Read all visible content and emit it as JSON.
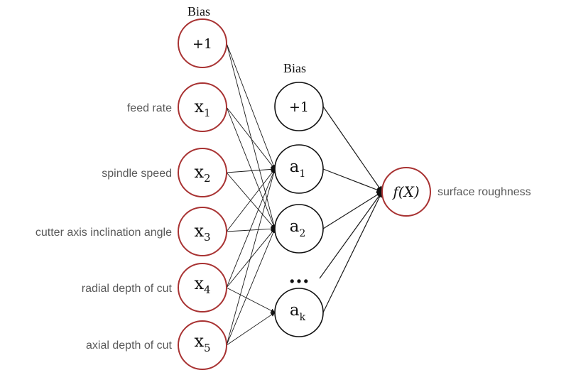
{
  "input_layer": {
    "bias_label": "Bias",
    "bias_node": "+1",
    "nodes": [
      {
        "main": "x",
        "sub": "1",
        "label": "feed rate"
      },
      {
        "main": "x",
        "sub": "2",
        "label": "spindle speed"
      },
      {
        "main": "x",
        "sub": "3",
        "label": "cutter axis inclination angle"
      },
      {
        "main": "x",
        "sub": "4",
        "label": "radial depth of cut"
      },
      {
        "main": "x",
        "sub": "5",
        "label": "axial depth of cut"
      }
    ]
  },
  "hidden_layer": {
    "bias_label": "Bias",
    "bias_node": "+1",
    "nodes": [
      {
        "main": "a",
        "sub": "1"
      },
      {
        "main": "a",
        "sub": "2"
      },
      {
        "main": "a",
        "sub": "k"
      }
    ],
    "ellipsis": "..."
  },
  "output_layer": {
    "node": "f(X)",
    "label": "surface roughness"
  },
  "colors": {
    "input_node_stroke": "#a83232",
    "hidden_node_stroke": "#111111",
    "feature_text": "#595959"
  }
}
